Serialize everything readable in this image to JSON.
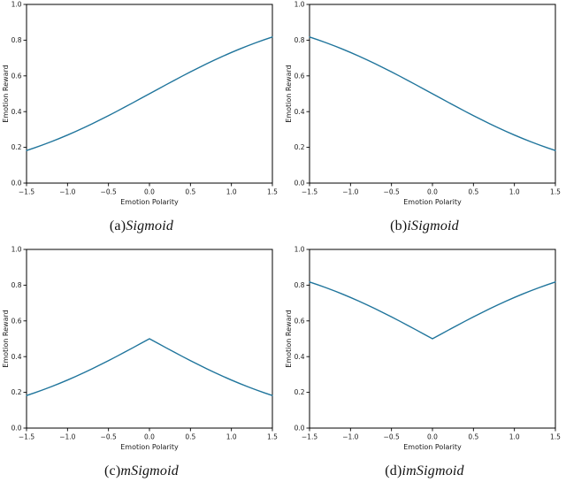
{
  "figure": {
    "x_label": "Emotion Polarity",
    "y_label": "Emotion Reward",
    "x_tick_labels": [
      "−1.5",
      "−1.0",
      "−0.5",
      "0.0",
      "0.5",
      "1.0",
      "1.5"
    ],
    "y_tick_labels": [
      "0.0",
      "0.2",
      "0.4",
      "0.6",
      "0.8",
      "1.0"
    ],
    "text_color": "#1a1a1a",
    "spine_color": "#000000"
  },
  "chart_data": [
    {
      "type": "line",
      "caption_prefix": "(a)",
      "caption_name": "Sigmoid",
      "xlabel": "Emotion Polarity",
      "ylabel": "Emotion Reward",
      "xlim": [
        -1.5,
        1.5
      ],
      "ylim": [
        0.0,
        1.0
      ],
      "x_ticks": [
        -1.5,
        -1.0,
        -0.5,
        0.0,
        0.5,
        1.0,
        1.5
      ],
      "y_ticks": [
        0.0,
        0.2,
        0.4,
        0.6,
        0.8,
        1.0
      ],
      "grid": false,
      "legend": "none",
      "line_color": "#20759c",
      "x": [
        -1.5,
        -1.4,
        -1.3,
        -1.2,
        -1.1,
        -1.0,
        -0.9,
        -0.8,
        -0.7,
        -0.6,
        -0.5,
        -0.4,
        -0.3,
        -0.2,
        -0.1,
        0.0,
        0.1,
        0.2,
        0.3,
        0.4,
        0.5,
        0.6,
        0.7,
        0.8,
        0.9,
        1.0,
        1.1,
        1.2,
        1.3,
        1.4,
        1.5
      ],
      "y": [
        0.1824,
        0.1978,
        0.2142,
        0.2315,
        0.2497,
        0.2689,
        0.2891,
        0.31,
        0.3318,
        0.3543,
        0.3775,
        0.4013,
        0.4256,
        0.4502,
        0.475,
        0.5,
        0.525,
        0.5498,
        0.5744,
        0.5987,
        0.6225,
        0.6457,
        0.6682,
        0.69,
        0.7109,
        0.7311,
        0.7503,
        0.7685,
        0.7858,
        0.8022,
        0.8176
      ]
    },
    {
      "type": "line",
      "caption_prefix": "(b)",
      "caption_name": "iSigmoid",
      "xlabel": "Emotion Polarity",
      "ylabel": "Emotion Reward",
      "xlim": [
        -1.5,
        1.5
      ],
      "ylim": [
        0.0,
        1.0
      ],
      "x_ticks": [
        -1.5,
        -1.0,
        -0.5,
        0.0,
        0.5,
        1.0,
        1.5
      ],
      "y_ticks": [
        0.0,
        0.2,
        0.4,
        0.6,
        0.8,
        1.0
      ],
      "grid": false,
      "legend": "none",
      "line_color": "#20759c",
      "x": [
        -1.5,
        -1.4,
        -1.3,
        -1.2,
        -1.1,
        -1.0,
        -0.9,
        -0.8,
        -0.7,
        -0.6,
        -0.5,
        -0.4,
        -0.3,
        -0.2,
        -0.1,
        0.0,
        0.1,
        0.2,
        0.3,
        0.4,
        0.5,
        0.6,
        0.7,
        0.8,
        0.9,
        1.0,
        1.1,
        1.2,
        1.3,
        1.4,
        1.5
      ],
      "y": [
        0.8176,
        0.8022,
        0.7858,
        0.7685,
        0.7503,
        0.7311,
        0.7109,
        0.69,
        0.6682,
        0.6457,
        0.6225,
        0.5987,
        0.5744,
        0.5498,
        0.525,
        0.5,
        0.475,
        0.4502,
        0.4256,
        0.4013,
        0.3775,
        0.3543,
        0.3318,
        0.31,
        0.2891,
        0.2689,
        0.2497,
        0.2315,
        0.2142,
        0.1978,
        0.1824
      ]
    },
    {
      "type": "line",
      "caption_prefix": "(c)",
      "caption_name": "mSigmoid",
      "xlabel": "Emotion Polarity",
      "ylabel": "Emotion Reward",
      "xlim": [
        -1.5,
        1.5
      ],
      "ylim": [
        0.0,
        1.0
      ],
      "x_ticks": [
        -1.5,
        -1.0,
        -0.5,
        0.0,
        0.5,
        1.0,
        1.5
      ],
      "y_ticks": [
        0.0,
        0.2,
        0.4,
        0.6,
        0.8,
        1.0
      ],
      "grid": false,
      "legend": "none",
      "line_color": "#20759c",
      "x": [
        -1.5,
        -1.4,
        -1.3,
        -1.2,
        -1.1,
        -1.0,
        -0.9,
        -0.8,
        -0.7,
        -0.6,
        -0.5,
        -0.4,
        -0.3,
        -0.2,
        -0.1,
        0.0,
        0.1,
        0.2,
        0.3,
        0.4,
        0.5,
        0.6,
        0.7,
        0.8,
        0.9,
        1.0,
        1.1,
        1.2,
        1.3,
        1.4,
        1.5
      ],
      "y": [
        0.1824,
        0.1978,
        0.2142,
        0.2315,
        0.2497,
        0.2689,
        0.2891,
        0.31,
        0.3318,
        0.3543,
        0.3775,
        0.4013,
        0.4256,
        0.4502,
        0.475,
        0.5,
        0.475,
        0.4502,
        0.4256,
        0.4013,
        0.3775,
        0.3543,
        0.3318,
        0.31,
        0.2891,
        0.2689,
        0.2497,
        0.2315,
        0.2142,
        0.1978,
        0.1824
      ]
    },
    {
      "type": "line",
      "caption_prefix": "(d)",
      "caption_name": "imSigmoid",
      "xlabel": "Emotion Polarity",
      "ylabel": "Emotion Reward",
      "xlim": [
        -1.5,
        1.5
      ],
      "ylim": [
        0.0,
        1.0
      ],
      "x_ticks": [
        -1.5,
        -1.0,
        -0.5,
        0.0,
        0.5,
        1.0,
        1.5
      ],
      "y_ticks": [
        0.0,
        0.2,
        0.4,
        0.6,
        0.8,
        1.0
      ],
      "grid": false,
      "legend": "none",
      "line_color": "#20759c",
      "x": [
        -1.5,
        -1.4,
        -1.3,
        -1.2,
        -1.1,
        -1.0,
        -0.9,
        -0.8,
        -0.7,
        -0.6,
        -0.5,
        -0.4,
        -0.3,
        -0.2,
        -0.1,
        0.0,
        0.1,
        0.2,
        0.3,
        0.4,
        0.5,
        0.6,
        0.7,
        0.8,
        0.9,
        1.0,
        1.1,
        1.2,
        1.3,
        1.4,
        1.5
      ],
      "y": [
        0.8176,
        0.8022,
        0.7858,
        0.7685,
        0.7503,
        0.7311,
        0.7109,
        0.69,
        0.6682,
        0.6457,
        0.6225,
        0.5987,
        0.5744,
        0.5498,
        0.525,
        0.5,
        0.525,
        0.5498,
        0.5744,
        0.5987,
        0.6225,
        0.6457,
        0.6682,
        0.69,
        0.7109,
        0.7311,
        0.7503,
        0.7685,
        0.7858,
        0.8022,
        0.8176
      ]
    }
  ]
}
